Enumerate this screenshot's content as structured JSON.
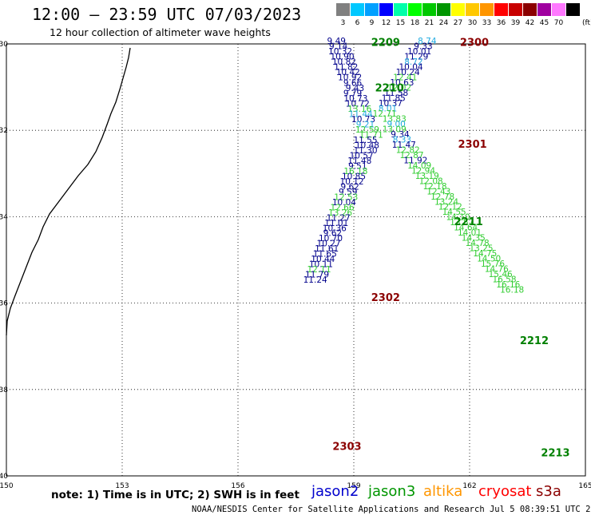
{
  "header": {
    "title": "12:00 – 23:59 UTC 07/03/2023",
    "subtitle": "12 hour collection of altimeter wave heights"
  },
  "legend_scale": {
    "labels": [
      "3",
      "6",
      "9",
      "12",
      "15",
      "18",
      "21",
      "24",
      "27",
      "30",
      "33",
      "36",
      "39",
      "42",
      "45",
      "70"
    ],
    "unit": "(ft)",
    "colors": [
      "#808080",
      "#00c8ff",
      "#00a0ff",
      "#0000ff",
      "#00ffaa",
      "#00ff00",
      "#00c800",
      "#009600",
      "#ffff00",
      "#ffc800",
      "#ff9600",
      "#ff0000",
      "#c80000",
      "#8b0000",
      "#a000a0",
      "#ff78ff",
      "#000000"
    ]
  },
  "axes": {
    "lon_ticks": [
      "150",
      "153",
      "156",
      "159",
      "162",
      "165"
    ],
    "lat_ticks": [
      "-30",
      "-32",
      "-34",
      "-36",
      "-38",
      "-40"
    ],
    "lon_range": [
      150,
      165
    ],
    "lat_range": [
      -40,
      -30
    ]
  },
  "colors": {
    "jason2": "#0000cd",
    "jason3": "#009600",
    "altika": "#ff9600",
    "cryosat": "#ff0000",
    "s3a": "#8b0000",
    "wh_blue": "#00008b",
    "wh_light": "#20aae0",
    "wh_green": "#32cd32",
    "pass_dark": "#8b0000",
    "pass_green": "#008000"
  },
  "pass_labels": [
    {
      "text": "2209",
      "lon": 159.45,
      "lat": -30.05,
      "c": "pass_green"
    },
    {
      "text": "2300",
      "lon": 161.75,
      "lat": -30.05,
      "c": "pass_dark"
    },
    {
      "text": "2210",
      "lon": 159.55,
      "lat": -31.1,
      "c": "pass_green"
    },
    {
      "text": "2301",
      "lon": 161.7,
      "lat": -32.4,
      "c": "pass_dark"
    },
    {
      "text": "2211",
      "lon": 161.6,
      "lat": -34.2,
      "c": "pass_green"
    },
    {
      "text": "2302",
      "lon": 159.45,
      "lat": -35.95,
      "c": "pass_dark"
    },
    {
      "text": "2212",
      "lon": 163.3,
      "lat": -36.95,
      "c": "pass_green"
    },
    {
      "text": "2303",
      "lon": 158.45,
      "lat": -39.4,
      "c": "pass_dark"
    },
    {
      "text": "2213",
      "lon": 163.85,
      "lat": -39.55,
      "c": "pass_green"
    }
  ],
  "wave_heights": [
    {
      "v": "9.49",
      "lon": 158.55,
      "lat": -30.0,
      "c": "wh_blue"
    },
    {
      "v": "9.14",
      "lon": 158.6,
      "lat": -30.12,
      "c": "wh_blue"
    },
    {
      "v": "10.32",
      "lon": 158.65,
      "lat": -30.24,
      "c": "wh_blue"
    },
    {
      "v": "10.90",
      "lon": 158.7,
      "lat": -30.36,
      "c": "wh_blue"
    },
    {
      "v": "10.82",
      "lon": 158.75,
      "lat": -30.48,
      "c": "wh_blue"
    },
    {
      "v": "11.82",
      "lon": 158.8,
      "lat": -30.6,
      "c": "wh_blue"
    },
    {
      "v": "10.42",
      "lon": 158.85,
      "lat": -30.72,
      "c": "wh_blue"
    },
    {
      "v": "10.92",
      "lon": 158.9,
      "lat": -30.84,
      "c": "wh_blue"
    },
    {
      "v": "9.66",
      "lon": 158.97,
      "lat": -30.97,
      "c": "wh_blue"
    },
    {
      "v": "9.43",
      "lon": 159.03,
      "lat": -31.09,
      "c": "wh_blue"
    },
    {
      "v": "9.79",
      "lon": 158.97,
      "lat": -31.21,
      "c": "wh_blue"
    },
    {
      "v": "10.73",
      "lon": 159.05,
      "lat": -31.33,
      "c": "wh_blue"
    },
    {
      "v": "10.72",
      "lon": 159.1,
      "lat": -31.45,
      "c": "wh_blue"
    },
    {
      "v": "13.16",
      "lon": 159.15,
      "lat": -31.57,
      "c": "wh_green"
    },
    {
      "v": "11.44",
      "lon": 159.18,
      "lat": -31.69,
      "c": "wh_light"
    },
    {
      "v": "10.73",
      "lon": 159.25,
      "lat": -31.81,
      "c": "wh_blue"
    },
    {
      "v": "9.21",
      "lon": 159.3,
      "lat": -31.93,
      "c": "wh_light"
    },
    {
      "v": "12.59",
      "lon": 159.35,
      "lat": -32.05,
      "c": "wh_green"
    },
    {
      "v": "11.71",
      "lon": 159.45,
      "lat": -32.17,
      "c": "wh_green"
    },
    {
      "v": "11.55",
      "lon": 159.3,
      "lat": -32.29,
      "c": "wh_blue"
    },
    {
      "v": "10.48",
      "lon": 159.35,
      "lat": -32.41,
      "c": "wh_blue"
    },
    {
      "v": "11.30",
      "lon": 159.3,
      "lat": -32.53,
      "c": "wh_blue"
    },
    {
      "v": "10.57",
      "lon": 159.2,
      "lat": -32.65,
      "c": "wh_blue"
    },
    {
      "v": "11.48",
      "lon": 159.15,
      "lat": -32.77,
      "c": "wh_blue"
    },
    {
      "v": "9.51",
      "lon": 159.1,
      "lat": -32.89,
      "c": "wh_blue"
    },
    {
      "v": "16.18",
      "lon": 159.05,
      "lat": -33.01,
      "c": "wh_green"
    },
    {
      "v": "10.85",
      "lon": 159.0,
      "lat": -33.13,
      "c": "wh_blue"
    },
    {
      "v": "10.12",
      "lon": 158.95,
      "lat": -33.25,
      "c": "wh_blue"
    },
    {
      "v": "9.62",
      "lon": 158.9,
      "lat": -33.37,
      "c": "wh_blue"
    },
    {
      "v": "9.59",
      "lon": 158.85,
      "lat": -33.49,
      "c": "wh_blue"
    },
    {
      "v": "12.53",
      "lon": 158.8,
      "lat": -33.61,
      "c": "wh_green"
    },
    {
      "v": "10.04",
      "lon": 158.75,
      "lat": -33.73,
      "c": "wh_blue"
    },
    {
      "v": "12.66",
      "lon": 158.7,
      "lat": -33.85,
      "c": "wh_green"
    },
    {
      "v": "13.26",
      "lon": 158.65,
      "lat": -33.97,
      "c": "wh_green"
    },
    {
      "v": "11.27",
      "lon": 158.6,
      "lat": -34.09,
      "c": "wh_blue"
    },
    {
      "v": "11.01",
      "lon": 158.55,
      "lat": -34.21,
      "c": "wh_blue"
    },
    {
      "v": "10.36",
      "lon": 158.5,
      "lat": -34.33,
      "c": "wh_blue"
    },
    {
      "v": "9.62",
      "lon": 158.45,
      "lat": -34.45,
      "c": "wh_blue"
    },
    {
      "v": "10.70",
      "lon": 158.4,
      "lat": -34.57,
      "c": "wh_blue"
    },
    {
      "v": "10.27",
      "lon": 158.35,
      "lat": -34.69,
      "c": "wh_blue"
    },
    {
      "v": "11.61",
      "lon": 158.3,
      "lat": -34.81,
      "c": "wh_blue"
    },
    {
      "v": "11.65",
      "lon": 158.25,
      "lat": -34.93,
      "c": "wh_blue"
    },
    {
      "v": "10.44",
      "lon": 158.2,
      "lat": -35.05,
      "c": "wh_blue"
    },
    {
      "v": "10.11",
      "lon": 158.15,
      "lat": -35.17,
      "c": "wh_blue"
    },
    {
      "v": "12.11",
      "lon": 158.1,
      "lat": -35.29,
      "c": "wh_green"
    },
    {
      "v": "11.79",
      "lon": 158.05,
      "lat": -35.41,
      "c": "wh_blue"
    },
    {
      "v": "11.24",
      "lon": 158.0,
      "lat": -35.53,
      "c": "wh_blue"
    },
    {
      "v": "8.74",
      "lon": 160.9,
      "lat": -30.0,
      "c": "wh_light"
    },
    {
      "v": "9.33",
      "lon": 160.8,
      "lat": -30.12,
      "c": "wh_blue"
    },
    {
      "v": "10.01",
      "lon": 160.7,
      "lat": -30.24,
      "c": "wh_blue"
    },
    {
      "v": "11.29",
      "lon": 160.62,
      "lat": -30.36,
      "c": "wh_blue"
    },
    {
      "v": "8.72",
      "lon": 160.55,
      "lat": -30.48,
      "c": "wh_light"
    },
    {
      "v": "10.04",
      "lon": 160.48,
      "lat": -30.6,
      "c": "wh_blue"
    },
    {
      "v": "10.24",
      "lon": 160.4,
      "lat": -30.72,
      "c": "wh_blue"
    },
    {
      "v": "12.41",
      "lon": 160.33,
      "lat": -30.84,
      "c": "wh_green"
    },
    {
      "v": "10.63",
      "lon": 160.25,
      "lat": -30.96,
      "c": "wh_blue"
    },
    {
      "v": "12.02",
      "lon": 160.18,
      "lat": -31.08,
      "c": "wh_green"
    },
    {
      "v": "11.58",
      "lon": 160.1,
      "lat": -31.2,
      "c": "wh_blue"
    },
    {
      "v": "11.85",
      "lon": 160.03,
      "lat": -31.32,
      "c": "wh_blue"
    },
    {
      "v": "10.37",
      "lon": 159.95,
      "lat": -31.44,
      "c": "wh_blue"
    },
    {
      "v": "8.01",
      "lon": 159.88,
      "lat": -31.56,
      "c": "wh_light"
    },
    {
      "v": "12.71",
      "lon": 159.8,
      "lat": -31.68,
      "c": "wh_green"
    },
    {
      "v": "13.83",
      "lon": 160.05,
      "lat": -31.8,
      "c": "wh_green"
    },
    {
      "v": "9.00",
      "lon": 160.1,
      "lat": -31.92,
      "c": "wh_light"
    },
    {
      "v": "13.09",
      "lon": 160.05,
      "lat": -32.04,
      "c": "wh_green"
    },
    {
      "v": "9.34",
      "lon": 160.2,
      "lat": -32.16,
      "c": "wh_blue"
    },
    {
      "v": "8.33",
      "lon": 160.25,
      "lat": -32.28,
      "c": "wh_light"
    },
    {
      "v": "11.47",
      "lon": 160.3,
      "lat": -32.4,
      "c": "wh_blue"
    },
    {
      "v": "12.82",
      "lon": 160.4,
      "lat": -32.52,
      "c": "wh_green"
    },
    {
      "v": "12.87",
      "lon": 160.5,
      "lat": -32.64,
      "c": "wh_green"
    },
    {
      "v": "11.92",
      "lon": 160.6,
      "lat": -32.76,
      "c": "wh_blue"
    },
    {
      "v": "14.09",
      "lon": 160.7,
      "lat": -32.88,
      "c": "wh_green"
    },
    {
      "v": "12.94",
      "lon": 160.8,
      "lat": -33.0,
      "c": "wh_green"
    },
    {
      "v": "13.19",
      "lon": 160.9,
      "lat": -33.12,
      "c": "wh_green"
    },
    {
      "v": "12.08",
      "lon": 161.0,
      "lat": -33.24,
      "c": "wh_green"
    },
    {
      "v": "12.18",
      "lon": 161.1,
      "lat": -33.36,
      "c": "wh_green"
    },
    {
      "v": "12.43",
      "lon": 161.2,
      "lat": -33.48,
      "c": "wh_green"
    },
    {
      "v": "12.78",
      "lon": 161.3,
      "lat": -33.6,
      "c": "wh_green"
    },
    {
      "v": "13.24",
      "lon": 161.4,
      "lat": -33.72,
      "c": "wh_green"
    },
    {
      "v": "12.12",
      "lon": 161.5,
      "lat": -33.84,
      "c": "wh_green"
    },
    {
      "v": "14.55",
      "lon": 161.6,
      "lat": -33.96,
      "c": "wh_green"
    },
    {
      "v": "14.10",
      "lon": 161.7,
      "lat": -34.08,
      "c": "wh_green"
    },
    {
      "v": "13.57",
      "lon": 161.8,
      "lat": -34.2,
      "c": "wh_green"
    },
    {
      "v": "14.64",
      "lon": 161.9,
      "lat": -34.32,
      "c": "wh_green"
    },
    {
      "v": "14.01",
      "lon": 162.0,
      "lat": -34.44,
      "c": "wh_green"
    },
    {
      "v": "14.35",
      "lon": 162.1,
      "lat": -34.56,
      "c": "wh_green"
    },
    {
      "v": "14.78",
      "lon": 162.2,
      "lat": -34.68,
      "c": "wh_green"
    },
    {
      "v": "13.25",
      "lon": 162.3,
      "lat": -34.8,
      "c": "wh_green"
    },
    {
      "v": "14.75",
      "lon": 162.4,
      "lat": -34.92,
      "c": "wh_green"
    },
    {
      "v": "14.50",
      "lon": 162.5,
      "lat": -35.04,
      "c": "wh_green"
    },
    {
      "v": "15.76",
      "lon": 162.6,
      "lat": -35.16,
      "c": "wh_green"
    },
    {
      "v": "14.76",
      "lon": 162.7,
      "lat": -35.28,
      "c": "wh_green"
    },
    {
      "v": "15.46",
      "lon": 162.8,
      "lat": -35.4,
      "c": "wh_green"
    },
    {
      "v": "16.58",
      "lon": 162.9,
      "lat": -35.52,
      "c": "wh_green"
    },
    {
      "v": "16.16",
      "lon": 163.0,
      "lat": -35.64,
      "c": "wh_green"
    },
    {
      "v": "16.18",
      "lon": 163.1,
      "lat": -35.76,
      "c": "wh_green"
    }
  ],
  "note": "note:  1) Time is in UTC; 2) SWH is in feet",
  "satellites": [
    {
      "name": "jason2",
      "c": "jason2"
    },
    {
      "name": "jason3",
      "c": "jason3"
    },
    {
      "name": "altika",
      "c": "altika"
    },
    {
      "name": "cryosat",
      "c": "cryosat"
    },
    {
      "name": "s3a",
      "c": "s3a"
    }
  ],
  "footer": "NOAA/NESDIS Center for Satellite Applications and Research   Jul  5 08:39:51 UTC 2023"
}
